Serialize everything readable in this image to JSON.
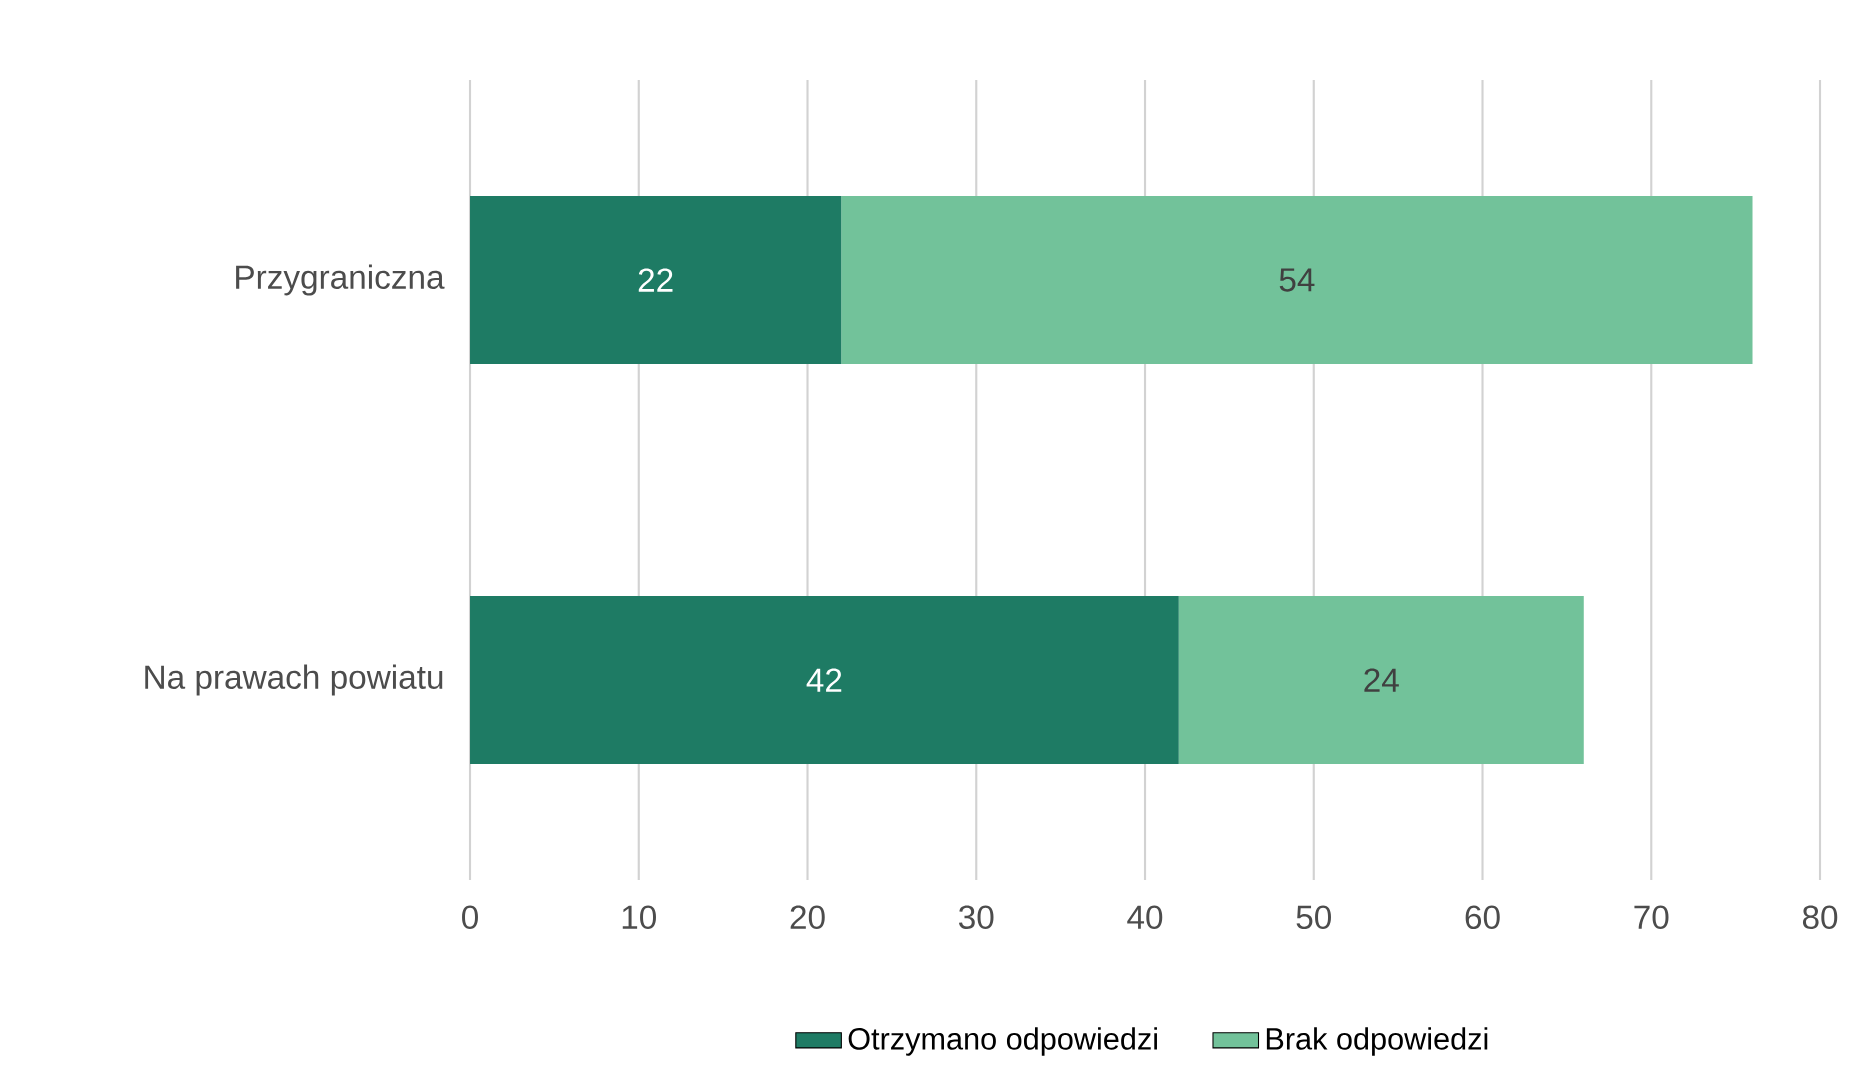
{
  "chart_data": {
    "type": "bar",
    "orientation": "horizontal",
    "stacked": true,
    "categories": [
      "Przygraniczna",
      "Na prawach powiatu"
    ],
    "series": [
      {
        "name": "Otrzymano odpowiedzi",
        "color": "#1e7b64",
        "values": [
          22,
          42
        ]
      },
      {
        "name": "Brak odpowiedzi",
        "color": "#72c29a",
        "values": [
          54,
          24
        ]
      }
    ],
    "xlim": [
      0,
      80
    ],
    "xticks": [
      0,
      10,
      20,
      30,
      40,
      50,
      60,
      70,
      80
    ],
    "grid": "x",
    "legend": "bottom",
    "data_labels": true
  }
}
